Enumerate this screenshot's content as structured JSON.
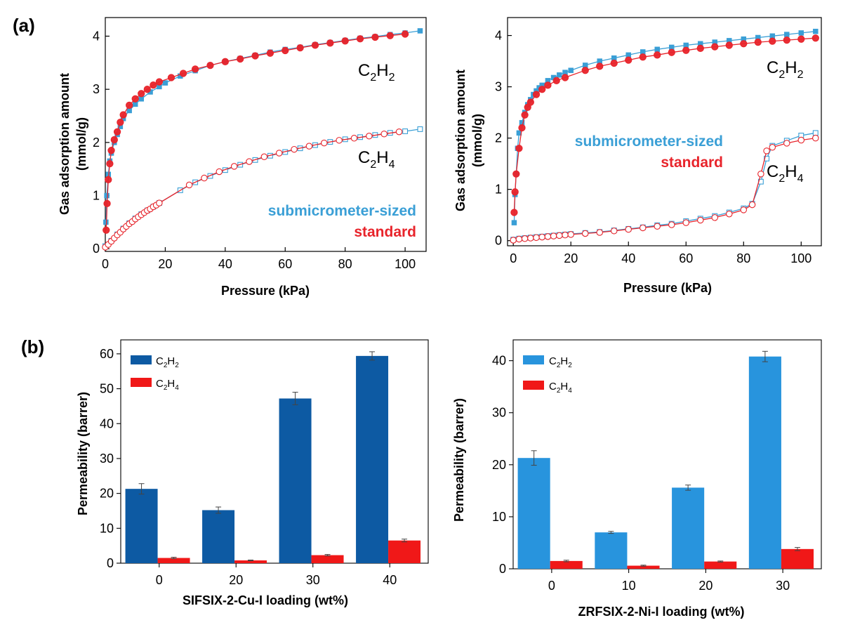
{
  "panel_labels": {
    "a": "(a)",
    "b": "(b)"
  },
  "colors": {
    "submicrometer": "#3a9fd6",
    "standard": "#e8242b",
    "bar_c2h2_dark": "#0d5aa3",
    "bar_c2h2_light": "#2894dd",
    "bar_c2h4": "#f01818"
  },
  "chart_data": [
    {
      "id": "a-left",
      "type": "scatter",
      "xlabel": "Pressure (kPa)",
      "ylabel": "Gas adsorption amount (mmol/g)",
      "ylabel_line1": "Gas adsorption amount",
      "ylabel_line2": "(mmol/g)",
      "xlim": [
        0,
        107
      ],
      "ylim": [
        -0.05,
        4.35
      ],
      "xticks": [
        "0",
        "20",
        "40",
        "60",
        "80",
        "100"
      ],
      "yticks": [
        "0",
        "1",
        "2",
        "3",
        "4"
      ],
      "legend": [
        "submicrometer-sized",
        "standard"
      ],
      "label_c2h2": {
        "main": "C",
        "sub1": "2",
        "mid": "H",
        "sub2": "2"
      },
      "label_c2h4": {
        "main": "C",
        "sub1": "2",
        "mid": "H",
        "sub2": "4"
      },
      "series": [
        {
          "name": "C2H2 submicrometer-sized",
          "style": "filled-square",
          "color": "#3a9fd6",
          "x": [
            0.2,
            0.5,
            1,
            1.5,
            2,
            3,
            4,
            5,
            6,
            8,
            10,
            12,
            15,
            18,
            20,
            25,
            30,
            35,
            40,
            45,
            50,
            55,
            60,
            65,
            70,
            75,
            80,
            85,
            90,
            95,
            100,
            105
          ],
          "y": [
            0.5,
            1.0,
            1.4,
            1.65,
            1.8,
            2.0,
            2.15,
            2.3,
            2.45,
            2.6,
            2.72,
            2.82,
            2.95,
            3.05,
            3.12,
            3.25,
            3.35,
            3.45,
            3.52,
            3.58,
            3.64,
            3.7,
            3.75,
            3.79,
            3.84,
            3.88,
            3.92,
            3.96,
            3.99,
            4.03,
            4.06,
            4.1
          ]
        },
        {
          "name": "C2H2 standard",
          "style": "filled-circle",
          "color": "#e8242b",
          "x": [
            0.3,
            0.6,
            1,
            1.5,
            2,
            3,
            4,
            5,
            6,
            8,
            10,
            12,
            14,
            16,
            18,
            22,
            26,
            30,
            35,
            40,
            45,
            50,
            55,
            60,
            65,
            70,
            75,
            80,
            85,
            90,
            95,
            100
          ],
          "y": [
            0.35,
            0.85,
            1.3,
            1.6,
            1.85,
            2.05,
            2.2,
            2.38,
            2.52,
            2.7,
            2.82,
            2.92,
            3.0,
            3.08,
            3.14,
            3.22,
            3.3,
            3.38,
            3.45,
            3.52,
            3.57,
            3.63,
            3.68,
            3.73,
            3.78,
            3.83,
            3.87,
            3.91,
            3.95,
            3.98,
            4.01,
            4.04
          ]
        },
        {
          "name": "C2H4 submicrometer-sized",
          "style": "open-square",
          "color": "#3a9fd6",
          "x": [
            0,
            2,
            4,
            6,
            8,
            10,
            12,
            14,
            16,
            18,
            25,
            30,
            35,
            40,
            45,
            50,
            55,
            60,
            65,
            70,
            75,
            80,
            85,
            90,
            95,
            100,
            105
          ],
          "y": [
            0.05,
            0.15,
            0.27,
            0.38,
            0.48,
            0.57,
            0.65,
            0.72,
            0.79,
            0.86,
            1.1,
            1.25,
            1.37,
            1.48,
            1.58,
            1.67,
            1.75,
            1.82,
            1.89,
            1.95,
            2.01,
            2.06,
            2.1,
            2.14,
            2.18,
            2.21,
            2.25
          ]
        },
        {
          "name": "C2H4 standard",
          "style": "open-circle",
          "color": "#e8242b",
          "x": [
            0,
            1,
            2,
            3,
            4,
            5,
            6,
            7,
            8,
            9,
            10,
            11,
            12,
            13,
            14,
            15,
            16,
            17,
            18,
            28,
            33,
            38,
            43,
            48,
            53,
            58,
            63,
            68,
            73,
            78,
            83,
            88,
            93,
            98
          ],
          "y": [
            0.03,
            0.08,
            0.14,
            0.2,
            0.26,
            0.31,
            0.37,
            0.42,
            0.47,
            0.51,
            0.56,
            0.6,
            0.64,
            0.68,
            0.72,
            0.75,
            0.79,
            0.82,
            0.86,
            1.2,
            1.33,
            1.45,
            1.55,
            1.64,
            1.73,
            1.8,
            1.87,
            1.93,
            1.99,
            2.04,
            2.08,
            2.12,
            2.16,
            2.2
          ]
        }
      ]
    },
    {
      "id": "a-right",
      "type": "scatter",
      "xlabel": "Pressure (kPa)",
      "ylabel": "Gas adsorption amount (mmol/g)",
      "ylabel_line1": "Gas adsorption amount",
      "ylabel_line2": "(mmol/g)",
      "xlim": [
        -2,
        107
      ],
      "ylim": [
        -0.1,
        4.35
      ],
      "xticks": [
        "0",
        "20",
        "40",
        "60",
        "80",
        "100"
      ],
      "yticks": [
        "0",
        "1",
        "2",
        "3",
        "4"
      ],
      "legend": [
        "submicrometer-sized",
        "standard"
      ],
      "label_c2h2": {
        "main": "C",
        "sub1": "2",
        "mid": "H",
        "sub2": "2"
      },
      "label_c2h4": {
        "main": "C",
        "sub1": "2",
        "mid": "H",
        "sub2": "4"
      },
      "series": [
        {
          "name": "C2H2 submicrometer-sized",
          "style": "filled-square",
          "color": "#3a9fd6",
          "x": [
            0.3,
            0.6,
            1,
            1.5,
            2,
            3,
            4,
            5,
            6,
            7,
            8,
            9,
            10,
            12,
            14,
            16,
            18,
            20,
            25,
            30,
            35,
            40,
            45,
            50,
            55,
            60,
            65,
            70,
            75,
            80,
            85,
            90,
            95,
            100,
            105
          ],
          "y": [
            0.35,
            0.9,
            1.3,
            1.8,
            2.1,
            2.3,
            2.5,
            2.65,
            2.75,
            2.85,
            2.92,
            2.98,
            3.03,
            3.12,
            3.18,
            3.23,
            3.28,
            3.32,
            3.42,
            3.5,
            3.56,
            3.62,
            3.68,
            3.73,
            3.77,
            3.81,
            3.84,
            3.87,
            3.9,
            3.93,
            3.96,
            3.99,
            4.02,
            4.05,
            4.08
          ]
        },
        {
          "name": "C2H2 standard",
          "style": "filled-circle",
          "color": "#e8242b",
          "x": [
            0.3,
            0.6,
            1,
            2,
            3,
            4,
            5,
            6,
            8,
            10,
            12,
            15,
            18,
            25,
            30,
            35,
            40,
            45,
            50,
            55,
            60,
            65,
            70,
            75,
            80,
            85,
            90,
            95,
            100,
            105
          ],
          "y": [
            0.55,
            0.95,
            1.3,
            1.8,
            2.2,
            2.45,
            2.6,
            2.7,
            2.85,
            2.95,
            3.03,
            3.12,
            3.18,
            3.32,
            3.4,
            3.46,
            3.52,
            3.58,
            3.62,
            3.67,
            3.71,
            3.75,
            3.78,
            3.81,
            3.84,
            3.87,
            3.89,
            3.91,
            3.93,
            3.95
          ]
        },
        {
          "name": "C2H4 submicrometer-sized",
          "style": "open-square",
          "color": "#3a9fd6",
          "x": [
            0,
            2,
            4,
            6,
            8,
            10,
            12,
            14,
            16,
            18,
            20,
            25,
            30,
            35,
            40,
            45,
            50,
            55,
            60,
            65,
            70,
            75,
            80,
            83,
            86,
            88,
            90,
            95,
            100,
            105
          ],
          "y": [
            0.02,
            0.04,
            0.05,
            0.06,
            0.07,
            0.08,
            0.09,
            0.1,
            0.11,
            0.12,
            0.13,
            0.15,
            0.17,
            0.2,
            0.23,
            0.26,
            0.3,
            0.33,
            0.38,
            0.43,
            0.48,
            0.55,
            0.63,
            0.72,
            1.15,
            1.6,
            1.85,
            1.95,
            2.05,
            2.1
          ]
        },
        {
          "name": "C2H4 standard",
          "style": "open-circle",
          "color": "#e8242b",
          "x": [
            0,
            2,
            4,
            6,
            8,
            10,
            12,
            14,
            16,
            18,
            20,
            25,
            30,
            35,
            40,
            45,
            50,
            55,
            60,
            65,
            70,
            75,
            80,
            83,
            86,
            88,
            90,
            95,
            100,
            105
          ],
          "y": [
            0.01,
            0.03,
            0.04,
            0.05,
            0.06,
            0.07,
            0.08,
            0.09,
            0.1,
            0.11,
            0.12,
            0.14,
            0.16,
            0.19,
            0.22,
            0.25,
            0.28,
            0.31,
            0.35,
            0.4,
            0.45,
            0.52,
            0.6,
            0.7,
            1.3,
            1.75,
            1.82,
            1.9,
            1.96,
            2.0
          ]
        }
      ]
    },
    {
      "id": "b-left",
      "type": "bar",
      "xlabel": "SIFSIX-2-Cu-I loading (wt%)",
      "ylabel": "Permeability (barrer)",
      "categories": [
        "0",
        "20",
        "30",
        "40"
      ],
      "ylim": [
        0,
        64
      ],
      "yticks": [
        "0",
        "10",
        "20",
        "30",
        "40",
        "50",
        "60"
      ],
      "legend_c2h2": {
        "main": "C",
        "sub1": "2",
        "mid": "H",
        "sub2": "2"
      },
      "legend_c2h4": {
        "main": "C",
        "sub1": "2",
        "mid": "H",
        "sub2": "4"
      },
      "series": [
        {
          "name": "C2H2",
          "color": "#0d5aa3",
          "values": [
            21.3,
            15.2,
            47.2,
            59.4
          ],
          "errors": [
            1.5,
            0.9,
            1.8,
            1.2
          ]
        },
        {
          "name": "C2H4",
          "color": "#f01818",
          "values": [
            1.5,
            0.8,
            2.3,
            6.5
          ],
          "errors": [
            0.2,
            0.1,
            0.2,
            0.4
          ]
        }
      ]
    },
    {
      "id": "b-right",
      "type": "bar",
      "xlabel": "ZRFSIX-2-Ni-I loading (wt%)",
      "ylabel": "Permeability (barrer)",
      "categories": [
        "0",
        "10",
        "20",
        "30"
      ],
      "ylim": [
        0,
        44
      ],
      "yticks": [
        "0",
        "10",
        "20",
        "30",
        "40"
      ],
      "legend_c2h2": {
        "main": "C",
        "sub1": "2",
        "mid": "H",
        "sub2": "2"
      },
      "legend_c2h4": {
        "main": "C",
        "sub1": "2",
        "mid": "H",
        "sub2": "4"
      },
      "series": [
        {
          "name": "C2H2",
          "color": "#2894dd",
          "values": [
            21.3,
            7.0,
            15.6,
            40.8
          ],
          "errors": [
            1.4,
            0.2,
            0.5,
            1.0
          ]
        },
        {
          "name": "C2H4",
          "color": "#f01818",
          "values": [
            1.5,
            0.6,
            1.4,
            3.8
          ],
          "errors": [
            0.15,
            0.1,
            0.1,
            0.3
          ]
        }
      ]
    }
  ]
}
